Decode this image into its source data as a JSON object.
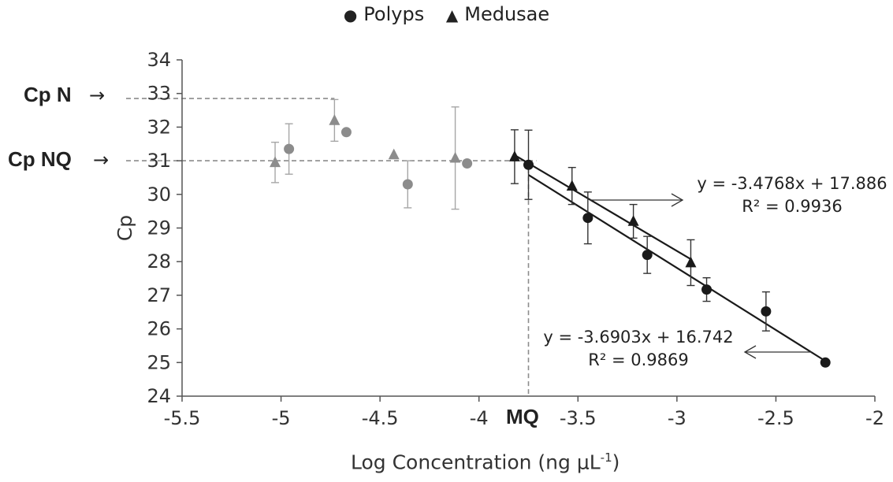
{
  "chart_data": {
    "type": "scatter",
    "xlabel": "Log Concentration (ng μL",
    "xlabel_sup": "-1",
    "xlabel_close": ")",
    "ylabel": "Cp",
    "xlim": [
      -5.5,
      -2
    ],
    "ylim": [
      24,
      34
    ],
    "x_ticks": [
      "-5.5",
      "-5",
      "-4.5",
      "-4",
      "-3.5",
      "-3",
      "-2.5",
      "-2"
    ],
    "y_ticks": [
      "24",
      "25",
      "26",
      "27",
      "28",
      "29",
      "30",
      "31",
      "32",
      "33",
      "34"
    ],
    "legend_position": "top-center",
    "series": [
      {
        "name": "Polyps",
        "marker": "circle",
        "points": [
          {
            "x": -4.96,
            "y": 31.35,
            "err": 0.75,
            "style": "gray"
          },
          {
            "x": -4.67,
            "y": 31.85,
            "err": 0.0,
            "style": "gray"
          },
          {
            "x": -4.36,
            "y": 30.3,
            "err": 0.7,
            "style": "gray"
          },
          {
            "x": -4.06,
            "y": 30.92,
            "err": 0.0,
            "style": "gray"
          },
          {
            "x": -3.75,
            "y": 30.88,
            "err": 1.03,
            "style": "black"
          },
          {
            "x": -3.45,
            "y": 29.3,
            "err": 0.77,
            "style": "black"
          },
          {
            "x": -3.15,
            "y": 28.2,
            "err": 0.55,
            "style": "black"
          },
          {
            "x": -2.85,
            "y": 27.17,
            "err": 0.35,
            "style": "black"
          },
          {
            "x": -2.55,
            "y": 26.52,
            "err": 0.58,
            "style": "black"
          },
          {
            "x": -2.25,
            "y": 25.0,
            "err": 0.0,
            "style": "black"
          }
        ],
        "trendline": {
          "slope": -3.6903,
          "intercept": 16.742,
          "x_range": [
            -3.75,
            -2.25
          ]
        }
      },
      {
        "name": "Medusae",
        "marker": "triangle",
        "points": [
          {
            "x": -5.03,
            "y": 30.95,
            "err": 0.6,
            "style": "gray"
          },
          {
            "x": -4.73,
            "y": 32.2,
            "err": 0.62,
            "style": "gray"
          },
          {
            "x": -4.43,
            "y": 31.18,
            "err": 0.0,
            "style": "gray"
          },
          {
            "x": -4.12,
            "y": 31.08,
            "err": 1.52,
            "style": "gray"
          },
          {
            "x": -3.82,
            "y": 31.12,
            "err": 0.8,
            "style": "black"
          },
          {
            "x": -3.53,
            "y": 30.25,
            "err": 0.55,
            "style": "black"
          },
          {
            "x": -3.22,
            "y": 29.2,
            "err": 0.5,
            "style": "black"
          },
          {
            "x": -2.93,
            "y": 27.97,
            "err": 0.68,
            "style": "black"
          }
        ],
        "trendline": {
          "slope": -3.4768,
          "intercept": 17.886,
          "x_range": [
            -3.82,
            -2.93
          ]
        }
      }
    ],
    "reference_lines": {
      "cp_n": 32.85,
      "cp_nq": 31.0,
      "mq": -3.75
    },
    "annotations": {
      "medusae_eq": "y = -3.4768x + 17.886",
      "medusae_r2": "R² = 0.9936",
      "polyps_eq": "y = -3.6903x + 16.742",
      "polyps_r2": "R² = 0.9869",
      "cp_n_label": "Cp N",
      "cp_nq_label": "Cp NQ",
      "mq_label": "MQ",
      "side_arrow": "→"
    },
    "colors": {
      "black": "#1a1a1a",
      "gray": "#8c8c8c",
      "gray_err": "#a6a6a6",
      "axis": "#555555",
      "dashed": "#8c8c8c"
    }
  }
}
